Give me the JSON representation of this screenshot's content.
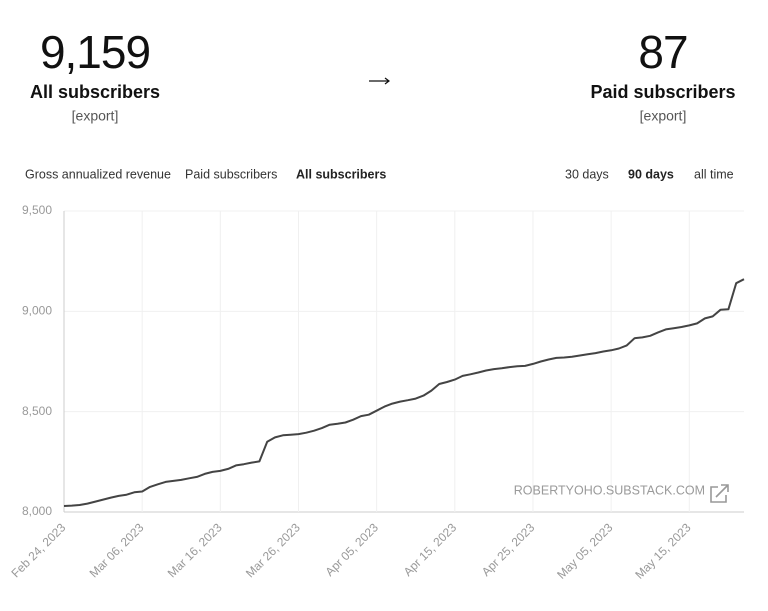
{
  "stats": {
    "all": {
      "value": "9,159",
      "label": "All subscribers",
      "export": "[export]"
    },
    "paid": {
      "value": "87",
      "label": "Paid subscribers",
      "export": "[export]"
    }
  },
  "tabs": [
    "Gross annualized revenue",
    "Paid subscribers",
    "All subscribers"
  ],
  "active_tab": 2,
  "ranges": [
    "30 days",
    "90 days",
    "all time"
  ],
  "active_range": 1,
  "watermark": "ROBERTYOHO.SUBSTACK.COM",
  "chart_data": {
    "type": "line",
    "color": "#444444",
    "grid": true,
    "x": [
      "Feb 24, 2023",
      "Feb 25, 2023",
      "Feb 26, 2023",
      "Feb 27, 2023",
      "Feb 28, 2023",
      "Mar 01, 2023",
      "Mar 02, 2023",
      "Mar 03, 2023",
      "Mar 04, 2023",
      "Mar 05, 2023",
      "Mar 06, 2023",
      "Mar 07, 2023",
      "Mar 08, 2023",
      "Mar 09, 2023",
      "Mar 10, 2023",
      "Mar 11, 2023",
      "Mar 12, 2023",
      "Mar 13, 2023",
      "Mar 14, 2023",
      "Mar 15, 2023",
      "Mar 16, 2023",
      "Mar 17, 2023",
      "Mar 18, 2023",
      "Mar 19, 2023",
      "Mar 20, 2023",
      "Mar 21, 2023",
      "Mar 22, 2023",
      "Mar 23, 2023",
      "Mar 24, 2023",
      "Mar 25, 2023",
      "Mar 26, 2023",
      "Mar 27, 2023",
      "Mar 28, 2023",
      "Mar 29, 2023",
      "Mar 30, 2023",
      "Mar 31, 2023",
      "Apr 01, 2023",
      "Apr 02, 2023",
      "Apr 03, 2023",
      "Apr 04, 2023",
      "Apr 05, 2023",
      "Apr 06, 2023",
      "Apr 07, 2023",
      "Apr 08, 2023",
      "Apr 09, 2023",
      "Apr 10, 2023",
      "Apr 11, 2023",
      "Apr 12, 2023",
      "Apr 13, 2023",
      "Apr 14, 2023",
      "Apr 15, 2023",
      "Apr 16, 2023",
      "Apr 17, 2023",
      "Apr 18, 2023",
      "Apr 19, 2023",
      "Apr 20, 2023",
      "Apr 21, 2023",
      "Apr 22, 2023",
      "Apr 23, 2023",
      "Apr 24, 2023",
      "Apr 25, 2023",
      "Apr 26, 2023",
      "Apr 27, 2023",
      "Apr 28, 2023",
      "Apr 29, 2023",
      "Apr 30, 2023",
      "May 01, 2023",
      "May 02, 2023",
      "May 03, 2023",
      "May 04, 2023",
      "May 05, 2023",
      "May 06, 2023",
      "May 07, 2023",
      "May 08, 2023",
      "May 09, 2023",
      "May 10, 2023",
      "May 11, 2023",
      "May 12, 2023",
      "May 13, 2023",
      "May 14, 2023",
      "May 15, 2023",
      "May 16, 2023",
      "May 17, 2023",
      "May 18, 2023",
      "May 19, 2023",
      "May 20, 2023",
      "May 21, 2023",
      "May 22, 2023"
    ],
    "values": [
      8030,
      8032,
      8035,
      8042,
      8052,
      8062,
      8072,
      8080,
      8086,
      8098,
      8102,
      8125,
      8138,
      8150,
      8155,
      8160,
      8168,
      8175,
      8190,
      8200,
      8205,
      8215,
      8232,
      8238,
      8246,
      8252,
      8350,
      8372,
      8382,
      8385,
      8388,
      8395,
      8405,
      8418,
      8435,
      8440,
      8446,
      8460,
      8478,
      8485,
      8505,
      8525,
      8540,
      8550,
      8557,
      8565,
      8580,
      8605,
      8638,
      8648,
      8660,
      8678,
      8686,
      8695,
      8705,
      8712,
      8716,
      8722,
      8726,
      8728,
      8738,
      8750,
      8760,
      8768,
      8770,
      8774,
      8780,
      8786,
      8792,
      8800,
      8806,
      8815,
      8830,
      8866,
      8870,
      8878,
      8895,
      8910,
      8916,
      8922,
      8930,
      8940,
      8965,
      8975,
      9008,
      9010,
      9140,
      9160
    ],
    "ylim": [
      8000,
      9500
    ],
    "yticks": [
      {
        "value": 8000,
        "label": "8,000"
      },
      {
        "value": 8500,
        "label": "8,500"
      },
      {
        "value": 9000,
        "label": "9,000"
      },
      {
        "value": 9500,
        "label": "9,500"
      }
    ]
  }
}
